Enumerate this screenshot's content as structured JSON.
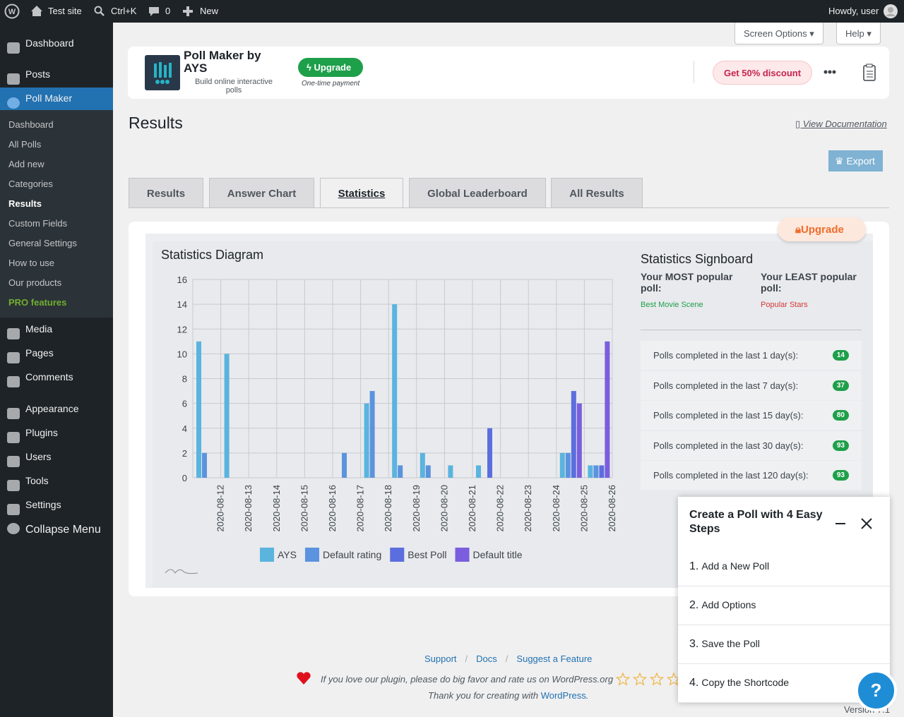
{
  "admin_bar": {
    "site": "Test site",
    "search": "Ctrl+K",
    "comments": "0",
    "new": "New",
    "greeting": "Howdy, user"
  },
  "sidebar": {
    "top": [
      "Dashboard",
      "Posts",
      "Poll Maker"
    ],
    "submenu": [
      "Dashboard",
      "All Polls",
      "Add new",
      "Categories",
      "Results",
      "Custom Fields",
      "General Settings",
      "How to use",
      "Our products",
      "PRO features"
    ],
    "bottom": [
      "Media",
      "Pages",
      "Comments",
      "Appearance",
      "Plugins",
      "Users",
      "Tools",
      "Settings"
    ],
    "collapse": "Collapse Menu"
  },
  "screen_options": "Screen Options",
  "help": "Help",
  "plugin_header": {
    "name": "Poll Maker by AYS",
    "tagline": "Build online interactive polls",
    "upgrade": "Upgrade",
    "one_time": "One-time payment",
    "discount": "Get 50% discount"
  },
  "page_title": "Results",
  "documentation": "View Documentation",
  "export": "Export",
  "tabs": [
    "Results",
    "Answer Chart",
    "Statistics",
    "Global Leaderboard",
    "All Results"
  ],
  "statistics": {
    "upgrade": "Upgrade",
    "chart": {
      "type": "bar",
      "title": "Statistics Diagram",
      "categories": [
        "2020-08-12",
        "2020-08-13",
        "2020-08-14",
        "2020-08-15",
        "2020-08-16",
        "2020-08-17",
        "2020-08-18",
        "2020-08-19",
        "2020-08-20",
        "2020-08-21",
        "2020-08-22",
        "2020-08-23",
        "2020-08-24",
        "2020-08-25",
        "2020-08-26"
      ],
      "series": [
        {
          "name": "AYS",
          "color": "#5ab4de",
          "values": [
            11,
            10,
            0,
            0,
            0,
            0,
            6,
            14,
            2,
            1,
            1,
            0,
            0,
            2,
            1
          ]
        },
        {
          "name": "Default rating",
          "color": "#5b93de",
          "values": [
            2,
            0,
            0,
            0,
            0,
            2,
            7,
            1,
            1,
            0,
            0,
            0,
            0,
            2,
            1
          ]
        },
        {
          "name": "Best Poll",
          "color": "#5b6ede",
          "values": [
            0,
            0,
            0,
            0,
            0,
            0,
            0,
            0,
            0,
            0,
            4,
            0,
            0,
            7,
            1
          ]
        },
        {
          "name": "Default title",
          "color": "#7a5ede",
          "values": [
            0,
            0,
            0,
            0,
            0,
            0,
            0,
            0,
            0,
            0,
            0,
            0,
            0,
            6,
            11
          ]
        }
      ],
      "ylim": [
        0,
        16
      ],
      "yticks": [
        0,
        2,
        4,
        6,
        8,
        10,
        12,
        14,
        16
      ],
      "grid": true
    },
    "signboard": {
      "title": "Statistics Signboard",
      "most_label": "Your MOST popular poll:",
      "most_value": "Best Movie Scene",
      "least_label": "Your LEAST popular poll:",
      "least_value": "Popular Stars",
      "rows": [
        {
          "label": "Polls completed in the last 1 day(s):",
          "value": 14
        },
        {
          "label": "Polls completed in the last 7 day(s):",
          "value": 37
        },
        {
          "label": "Polls completed in the last 15 day(s):",
          "value": 80
        },
        {
          "label": "Polls completed in the last 30 day(s):",
          "value": 93
        },
        {
          "label": "Polls completed in the last 120 day(s):",
          "value": 93
        }
      ]
    }
  },
  "popup": {
    "title": "Create a Poll with 4 Easy Steps",
    "steps": [
      {
        "number": "1.",
        "text": "Add a New Poll"
      },
      {
        "number": "2.",
        "text": "Add Options"
      },
      {
        "number": "3.",
        "text": "Save the Poll"
      },
      {
        "number": "4.",
        "text": "Copy the Shortcode"
      }
    ]
  },
  "help_button": "?",
  "footer": {
    "links": [
      "Support",
      "Docs",
      "Suggest a Feature"
    ],
    "separator": "/",
    "rate": "If you love our plugin, please do big favor and rate us on WordPress.org",
    "thanks": "Thank you for creating with",
    "wordpress": "WordPress",
    "thanks_end": ".",
    "version": "Version 7.1"
  }
}
